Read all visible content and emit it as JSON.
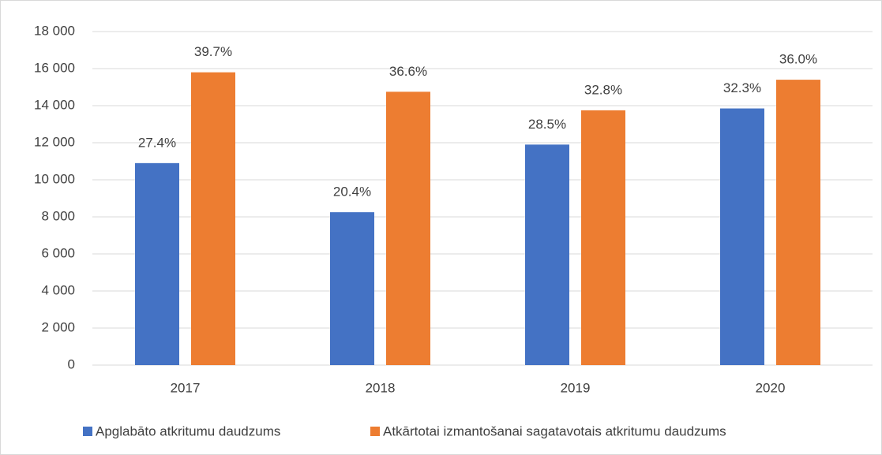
{
  "chart_data": {
    "type": "bar",
    "categories": [
      "2017",
      "2018",
      "2019",
      "2020"
    ],
    "series": [
      {
        "name": "Apglabāto atkritumu daudzums",
        "color": "#4472c4",
        "values": [
          10900,
          8250,
          11900,
          13850
        ],
        "labels": [
          "27.4%",
          "20.4%",
          "28.5%",
          "32.3%"
        ]
      },
      {
        "name": "Atkārtotai izmantošanai sagatavotais atkritumu daudzums",
        "color": "#ed7d31",
        "values": [
          15800,
          14750,
          13750,
          15400
        ],
        "labels": [
          "39.7%",
          "36.6%",
          "32.8%",
          "36.0%"
        ]
      }
    ],
    "ylim": [
      0,
      18000
    ],
    "yticks": [
      0,
      {
        "value": 2000,
        "label": "2 000"
      },
      {
        "value": 4000,
        "label": "4 000"
      },
      {
        "value": 6000,
        "label": "6 000"
      },
      {
        "value": 8000,
        "label": "8 000"
      },
      {
        "value": 10000,
        "label": "10 000"
      },
      {
        "value": 12000,
        "label": "12 000"
      },
      {
        "value": 14000,
        "label": "14 000"
      },
      {
        "value": 16000,
        "label": "16 000"
      },
      {
        "value": 18000,
        "label": "18 000"
      }
    ],
    "grid": true,
    "legend": "bottom"
  }
}
